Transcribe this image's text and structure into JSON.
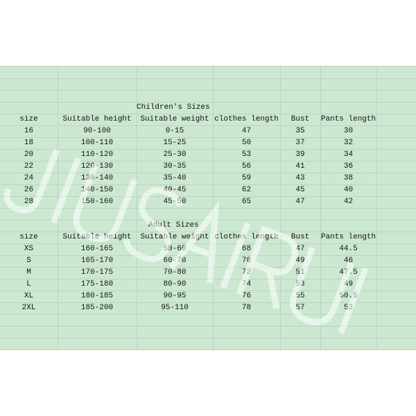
{
  "watermark": "JIUSAIRUI",
  "colors": {
    "sheet_background": "#cde8d0",
    "grid_line": "#b7d3c6",
    "text": "#111111"
  },
  "children": {
    "title": "Children's Sizes",
    "headers": [
      "size",
      "Suitable height",
      "Suitable weight",
      "clothes length",
      "Bust",
      "Pants length"
    ],
    "rows": [
      [
        "16",
        "90-100",
        "0-15",
        "47",
        "35",
        "30"
      ],
      [
        "18",
        "100-110",
        "15-25",
        "50",
        "37",
        "32"
      ],
      [
        "20",
        "110-120",
        "25-30",
        "53",
        "39",
        "34"
      ],
      [
        "22",
        "120-130",
        "30-35",
        "56",
        "41",
        "36"
      ],
      [
        "24",
        "130-140",
        "35-40",
        "59",
        "43",
        "38"
      ],
      [
        "26",
        "140-150",
        "40-45",
        "62",
        "45",
        "40"
      ],
      [
        "28",
        "150-160",
        "45-50",
        "65",
        "47",
        "42"
      ]
    ]
  },
  "adult": {
    "title": "Adult Sizes",
    "headers": [
      "size",
      "Suitable height",
      "Suitable weight",
      "clothes length",
      "Bust",
      "Pants length"
    ],
    "rows": [
      [
        "XS",
        "160-165",
        "50-60",
        "68",
        "47",
        "44.5"
      ],
      [
        "S",
        "165-170",
        "60-70",
        "70",
        "49",
        "46"
      ],
      [
        "M",
        "170-175",
        "70-80",
        "72",
        "51",
        "47.5"
      ],
      [
        "L",
        "175-180",
        "80-90",
        "74",
        "53",
        "49"
      ],
      [
        "XL",
        "180-185",
        "90-95",
        "76",
        "55",
        "50.5"
      ],
      [
        "2XL",
        "185-200",
        "95-110",
        "78",
        "57",
        "52"
      ]
    ]
  }
}
